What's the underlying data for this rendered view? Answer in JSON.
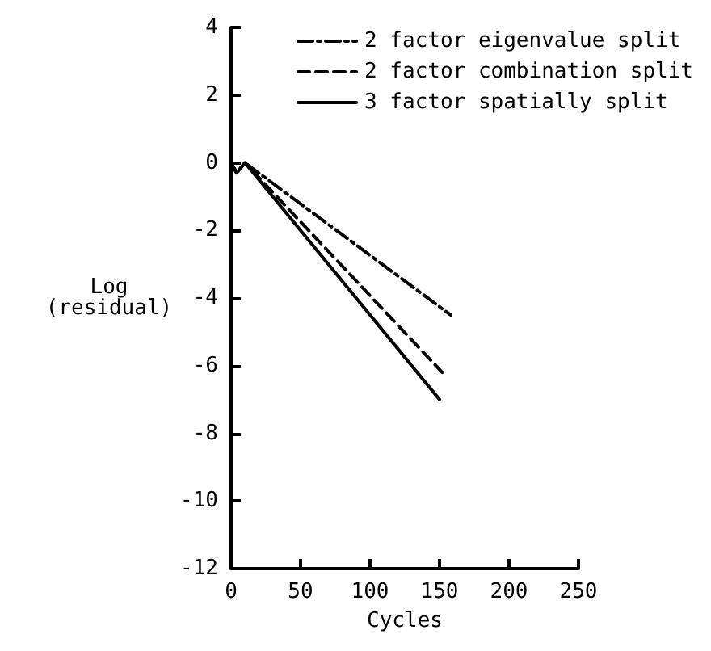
{
  "chart_data": {
    "type": "line",
    "xlabel": "Cycles",
    "ylabel": "Log (residual)",
    "xlim": [
      0,
      250
    ],
    "xticks": [
      0,
      50,
      100,
      150,
      200,
      250
    ],
    "ylim": [
      -12,
      4
    ],
    "yticks": [
      -12,
      -10,
      -8,
      -6,
      -4,
      -2,
      0,
      2,
      4
    ],
    "grid": false,
    "legend": "top right",
    "marker": "none",
    "series": [
      {
        "name": "2 factor eigenvalue split",
        "color": "#000000",
        "line_style": "dashdot",
        "x": [
          0,
          4,
          10,
          158
        ],
        "values": [
          0,
          -0.3,
          0,
          -4.5
        ]
      },
      {
        "name": "2 factor combination split",
        "color": "#000000",
        "line_style": "dashed",
        "x": [
          0,
          4,
          10,
          152
        ],
        "values": [
          0,
          -0.3,
          0,
          -6.2
        ]
      },
      {
        "name": "3 factor spatially split",
        "color": "#000000",
        "line_style": "solid",
        "x": [
          0,
          4,
          10,
          150
        ],
        "values": [
          0,
          -0.3,
          0,
          -7.0
        ]
      }
    ]
  }
}
